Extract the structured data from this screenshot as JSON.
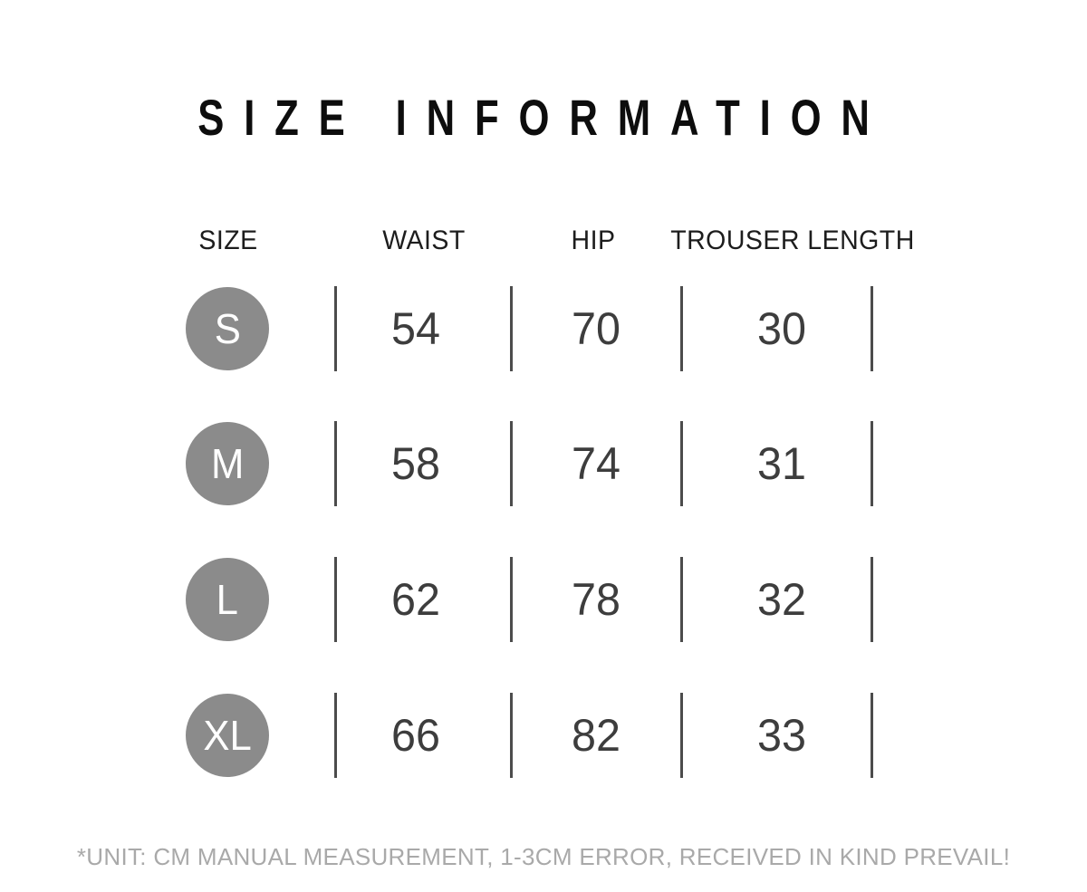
{
  "title": "SIZE INFORMATION",
  "table": {
    "headers": [
      "SIZE",
      "WAIST",
      "HIP",
      "TROUSER LENGTH"
    ],
    "rows": [
      {
        "size": "S",
        "waist": "54",
        "hip": "70",
        "trouser_length": "30"
      },
      {
        "size": "M",
        "waist": "58",
        "hip": "74",
        "trouser_length": "31"
      },
      {
        "size": "L",
        "waist": "62",
        "hip": "78",
        "trouser_length": "32"
      },
      {
        "size": "XL",
        "waist": "66",
        "hip": "82",
        "trouser_length": "33"
      }
    ]
  },
  "footnote": "*UNIT: CM MANUAL MEASUREMENT, 1-3CM ERROR, RECEIVED IN KIND PREVAIL!",
  "colors": {
    "background": "#FFFFFF",
    "title_text": "#0D0D0D",
    "header_text": "#1D1D1D",
    "badge_fill": "#8B8B8B",
    "badge_text": "#FFFFFF",
    "value_text": "#3D3D3D",
    "divider": "#4C4C4C",
    "footnote_text": "#A9A9A9"
  },
  "chart_data": {
    "type": "table",
    "title": "SIZE INFORMATION",
    "columns": [
      "SIZE",
      "WAIST",
      "HIP",
      "TROUSER LENGTH"
    ],
    "rows": [
      [
        "S",
        54,
        70,
        30
      ],
      [
        "M",
        58,
        74,
        31
      ],
      [
        "L",
        62,
        78,
        32
      ],
      [
        "XL",
        66,
        82,
        33
      ]
    ],
    "unit": "cm",
    "note": "*UNIT: CM MANUAL MEASUREMENT, 1-3CM ERROR, RECEIVED IN KIND PREVAIL!"
  }
}
